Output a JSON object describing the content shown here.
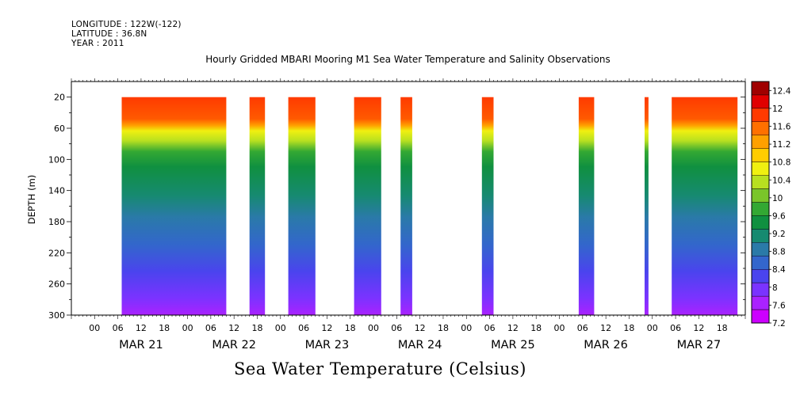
{
  "header": {
    "longitude": "LONGITUDE : 122W(-122)",
    "latitude": "LATITUDE : 36.8N",
    "year": "YEAR : 2011"
  },
  "title": "Hourly Gridded MBARI Mooring M1 Sea Water Temperature and Salinity Observations",
  "footer": "Sea Water Temperature (Celsius)",
  "chart_data": {
    "type": "heatmap",
    "ylabel": "DEPTH (m)",
    "y_ticks": [
      "20",
      "60",
      "100",
      "140",
      "180",
      "220",
      "260",
      "300"
    ],
    "ylim": [
      300,
      0
    ],
    "x_hour_ticks": [
      "00",
      "06",
      "12",
      "18",
      "00",
      "06",
      "12",
      "18",
      "00",
      "06",
      "12",
      "18",
      "00",
      "06",
      "12",
      "18",
      "00",
      "06",
      "12",
      "18",
      "00",
      "06",
      "12",
      "18",
      "00",
      "06",
      "12",
      "18"
    ],
    "x_day_labels": [
      "MAR 21",
      "MAR 22",
      "MAR 23",
      "MAR 24",
      "MAR 25",
      "MAR 26",
      "MAR 27"
    ],
    "data_segments_hours": [
      [
        7,
        34
      ],
      [
        40,
        44
      ],
      [
        50,
        57
      ],
      [
        67,
        74
      ],
      [
        79,
        82
      ],
      [
        100,
        103
      ],
      [
        125,
        129
      ],
      [
        142,
        143
      ],
      [
        149,
        166
      ]
    ],
    "colorbar_labels": [
      "12.4",
      "12",
      "11.6",
      "11.2",
      "10.8",
      "10.4",
      "10",
      "9.6",
      "9.2",
      "8.8",
      "8.4",
      "8",
      "7.6",
      "7.2"
    ],
    "colorbar_range": [
      7.2,
      12.6
    ],
    "colorbar_colors": [
      "#cc00ff",
      "#aa22ff",
      "#7a33ff",
      "#4a44ee",
      "#3366cc",
      "#2a7aa8",
      "#168a70",
      "#109040",
      "#33a833",
      "#7ac52a",
      "#b8e020",
      "#f0f010",
      "#ffcc00",
      "#ffa000",
      "#ff7000",
      "#ff3a00",
      "#e00000",
      "#a00000"
    ]
  }
}
